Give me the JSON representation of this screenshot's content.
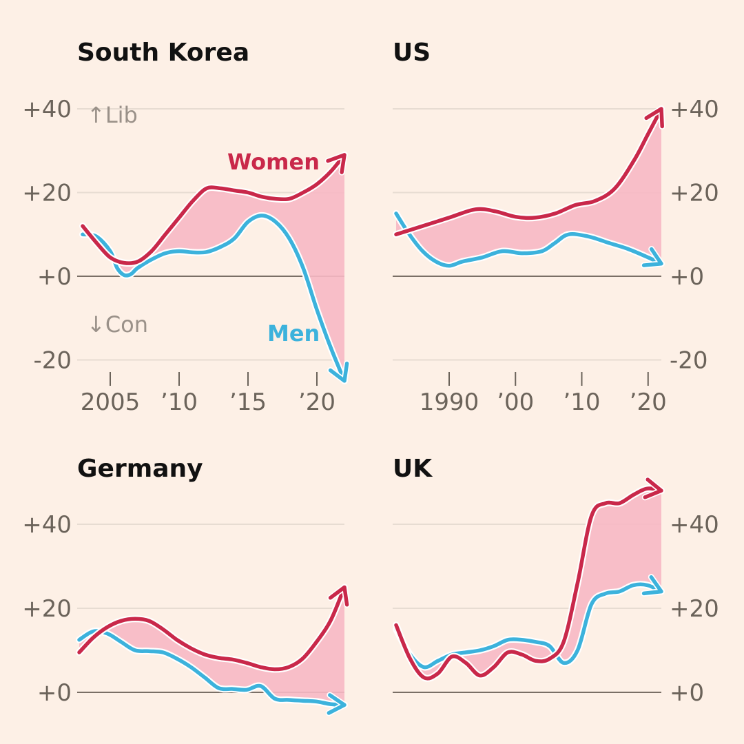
{
  "colors": {
    "background": "#fdf0e6",
    "women": "#c9284a",
    "men": "#3cb2dc",
    "gap_fill": "#f7b8c4",
    "gridline": "#e7dcd2",
    "zero_line": "#7a6f66",
    "tick_text": "#6b635a",
    "note_text": "#9a9189",
    "title_text": "#111111"
  },
  "chart_data": [
    {
      "type": "line",
      "title": "South Korea",
      "ylim": [
        -20,
        40
      ],
      "yticks": [
        "+40",
        "+20",
        "+0",
        "-20"
      ],
      "xticks": [
        {
          "value": 2005,
          "label": "2005"
        },
        {
          "value": 2010,
          "label": "’10"
        },
        {
          "value": 2015,
          "label": "’15"
        },
        {
          "value": 2020,
          "label": "’20"
        }
      ],
      "xlim": [
        2003,
        2022
      ],
      "annotations": {
        "up": "↑Lib",
        "down": "↓Con"
      },
      "series": [
        {
          "name": "Women",
          "key": "women",
          "x": [
            2003,
            2004,
            2005,
            2006,
            2007,
            2008,
            2009,
            2010,
            2011,
            2012,
            2013,
            2014,
            2015,
            2016,
            2017,
            2018,
            2019,
            2020,
            2021,
            2022
          ],
          "values": [
            12,
            8,
            4.5,
            3.2,
            3.5,
            6,
            10,
            14,
            18,
            21,
            21,
            20.5,
            20,
            19,
            18.5,
            18.5,
            20,
            22,
            25,
            29
          ]
        },
        {
          "name": "Men",
          "key": "men",
          "x": [
            2003,
            2004,
            2005,
            2005.5,
            2006,
            2006.5,
            2007,
            2008,
            2009,
            2010,
            2011,
            2012,
            2013,
            2014,
            2015,
            2016,
            2017,
            2018,
            2019,
            2020,
            2021,
            2022
          ],
          "values": [
            10,
            9.5,
            6,
            2,
            0.3,
            0.5,
            2,
            4,
            5.5,
            6,
            5.7,
            5.8,
            7,
            9,
            13,
            14.5,
            13,
            9,
            2,
            -8,
            -17,
            -25
          ]
        }
      ]
    },
    {
      "type": "line",
      "title": "US",
      "ylim": [
        -20,
        40
      ],
      "yticks": [
        "+40",
        "+20",
        "+0",
        "-20"
      ],
      "xticks": [
        {
          "value": 1990,
          "label": "1990"
        },
        {
          "value": 2000,
          "label": "’00"
        },
        {
          "value": 2010,
          "label": "’10"
        },
        {
          "value": 2020,
          "label": "’20"
        }
      ],
      "xlim": [
        1982,
        2022
      ],
      "series": [
        {
          "name": "Women",
          "key": "women",
          "x": [
            1982,
            1986,
            1990,
            1994,
            1997,
            2000,
            2003,
            2006,
            2009,
            2012,
            2015,
            2018,
            2020,
            2022
          ],
          "values": [
            10,
            12,
            14,
            16,
            15.5,
            14.2,
            14,
            15,
            17,
            18,
            21,
            28,
            34,
            40
          ]
        },
        {
          "name": "Men",
          "key": "men",
          "x": [
            1982,
            1984,
            1986,
            1988,
            1990,
            1992,
            1995,
            1998,
            2001,
            2004,
            2006,
            2008,
            2011,
            2014,
            2017,
            2020,
            2022
          ],
          "values": [
            15,
            10,
            6,
            3.5,
            2.5,
            3.5,
            4.5,
            6,
            5.5,
            6,
            8,
            10,
            9.5,
            8,
            6.5,
            4.5,
            3
          ]
        }
      ]
    },
    {
      "type": "line",
      "title": "Germany",
      "ylim": [
        0,
        40
      ],
      "yticks": [
        "+40",
        "+20",
        "+0"
      ],
      "xlim": [
        2003,
        2022
      ],
      "series": [
        {
          "name": "Women",
          "key": "women",
          "x": [
            2003,
            2004,
            2005,
            2006,
            2007,
            2008,
            2009,
            2010,
            2011,
            2012,
            2013,
            2014,
            2015,
            2016,
            2017,
            2018,
            2019,
            2020,
            2021,
            2022
          ],
          "values": [
            9.5,
            13,
            15.5,
            17,
            17.5,
            17,
            15,
            12.5,
            10.5,
            9,
            8.2,
            7.8,
            7,
            6,
            5.5,
            6,
            8,
            12,
            17,
            25
          ]
        },
        {
          "name": "Men",
          "key": "men",
          "x": [
            2003,
            2004,
            2005,
            2006,
            2007,
            2008,
            2009,
            2010,
            2011,
            2012,
            2013,
            2014,
            2015,
            2016,
            2017,
            2018,
            2019,
            2020,
            2021,
            2022
          ],
          "values": [
            12.5,
            14.5,
            14,
            12,
            10,
            9.8,
            9.5,
            8,
            6,
            3.5,
            1,
            0.8,
            0.6,
            1.5,
            -1.5,
            -1.8,
            -2,
            -2.2,
            -2.8,
            -3
          ]
        }
      ]
    },
    {
      "type": "line",
      "title": "UK",
      "ylim": [
        0,
        40
      ],
      "yticks": [
        "+40",
        "+20",
        "+0"
      ],
      "xlim": [
        2003,
        2022
      ],
      "series": [
        {
          "name": "Women",
          "key": "women",
          "x": [
            2003,
            2004,
            2005,
            2006,
            2007,
            2008,
            2009,
            2010,
            2011,
            2012,
            2013,
            2014,
            2015,
            2016,
            2017,
            2018,
            2019,
            2020,
            2021,
            2022
          ],
          "values": [
            16,
            8,
            3.5,
            4.5,
            8.5,
            7,
            4,
            6,
            9.5,
            9,
            7.5,
            8,
            12,
            26,
            42,
            45,
            45,
            47,
            48.5,
            48
          ]
        },
        {
          "name": "Men",
          "key": "men",
          "x": [
            2003,
            2004,
            2005,
            2006,
            2007,
            2008,
            2009,
            2010,
            2011,
            2012,
            2013,
            2014,
            2015,
            2016,
            2017,
            2018,
            2019,
            2020,
            2021,
            2022
          ],
          "values": [
            15,
            9,
            6,
            7.5,
            9,
            9.5,
            10,
            11,
            12.5,
            12.5,
            12,
            11,
            7,
            10,
            21,
            23.5,
            24,
            25.5,
            25.5,
            24
          ]
        }
      ]
    }
  ],
  "labels": {
    "women": "Women",
    "men": "Men"
  }
}
